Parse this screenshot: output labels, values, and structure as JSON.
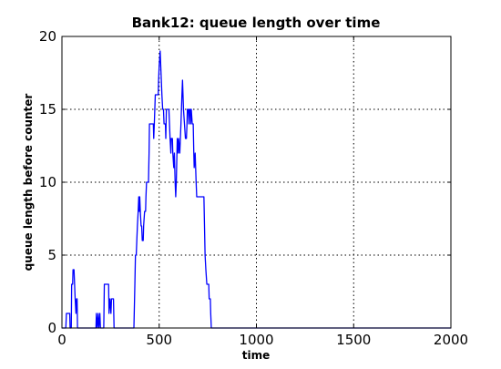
{
  "chart_data": {
    "type": "line",
    "title": "Bank12: queue length over time",
    "xlabel": "time",
    "ylabel": "queue length before counter",
    "xlim": [
      0,
      2000
    ],
    "ylim": [
      0,
      20
    ],
    "x_ticks": [
      0,
      500,
      1000,
      1500,
      2000
    ],
    "y_ticks": [
      0,
      5,
      10,
      15,
      20
    ],
    "x_tick_labels": [
      "0",
      "500",
      "1000",
      "1500",
      "2000"
    ],
    "y_tick_labels": [
      "0",
      "5",
      "10",
      "15",
      "20"
    ],
    "grid": true,
    "colors": {
      "series": "#0000ff",
      "axes": "#000000",
      "background": "#ffffff"
    },
    "series": [
      {
        "points": [
          [
            0,
            0
          ],
          [
            20,
            0
          ],
          [
            23,
            1
          ],
          [
            40,
            1
          ],
          [
            42,
            0
          ],
          [
            48,
            0
          ],
          [
            50,
            3
          ],
          [
            55,
            3
          ],
          [
            57,
            4
          ],
          [
            62,
            4
          ],
          [
            65,
            3
          ],
          [
            68,
            2
          ],
          [
            72,
            1
          ],
          [
            75,
            2
          ],
          [
            78,
            2
          ],
          [
            80,
            0
          ],
          [
            90,
            0
          ],
          [
            175,
            0
          ],
          [
            177,
            1
          ],
          [
            182,
            0
          ],
          [
            186,
            1
          ],
          [
            190,
            0
          ],
          [
            195,
            1
          ],
          [
            198,
            0
          ],
          [
            215,
            0
          ],
          [
            218,
            3
          ],
          [
            240,
            3
          ],
          [
            242,
            1
          ],
          [
            247,
            2
          ],
          [
            252,
            1
          ],
          [
            255,
            2
          ],
          [
            265,
            2
          ],
          [
            268,
            0
          ],
          [
            370,
            0
          ],
          [
            375,
            3
          ],
          [
            378,
            5
          ],
          [
            382,
            5
          ],
          [
            385,
            6
          ],
          [
            388,
            7
          ],
          [
            392,
            8
          ],
          [
            395,
            9
          ],
          [
            398,
            8
          ],
          [
            400,
            9
          ],
          [
            403,
            8
          ],
          [
            407,
            7
          ],
          [
            410,
            7
          ],
          [
            413,
            6
          ],
          [
            418,
            6
          ],
          [
            420,
            7
          ],
          [
            425,
            8
          ],
          [
            430,
            8
          ],
          [
            432,
            9
          ],
          [
            435,
            10
          ],
          [
            445,
            10
          ],
          [
            448,
            12
          ],
          [
            450,
            14
          ],
          [
            470,
            14
          ],
          [
            472,
            13
          ],
          [
            475,
            14
          ],
          [
            480,
            16
          ],
          [
            495,
            16
          ],
          [
            497,
            17
          ],
          [
            500,
            18
          ],
          [
            505,
            19
          ],
          [
            508,
            18
          ],
          [
            511,
            17
          ],
          [
            514,
            16
          ],
          [
            518,
            15
          ],
          [
            522,
            15
          ],
          [
            525,
            14
          ],
          [
            532,
            14
          ],
          [
            534,
            13
          ],
          [
            537,
            15
          ],
          [
            550,
            15
          ],
          [
            553,
            14
          ],
          [
            556,
            13
          ],
          [
            560,
            12
          ],
          [
            562,
            13
          ],
          [
            568,
            13
          ],
          [
            570,
            12
          ],
          [
            575,
            11
          ],
          [
            578,
            12
          ],
          [
            580,
            11
          ],
          [
            582,
            10
          ],
          [
            585,
            9
          ],
          [
            588,
            10
          ],
          [
            593,
            13
          ],
          [
            598,
            12
          ],
          [
            600,
            13
          ],
          [
            606,
            12
          ],
          [
            609,
            13
          ],
          [
            612,
            14
          ],
          [
            617,
            16
          ],
          [
            620,
            17
          ],
          [
            625,
            15
          ],
          [
            630,
            14
          ],
          [
            635,
            13
          ],
          [
            640,
            13
          ],
          [
            643,
            14
          ],
          [
            645,
            15
          ],
          [
            650,
            15
          ],
          [
            653,
            14
          ],
          [
            656,
            15
          ],
          [
            660,
            15
          ],
          [
            662,
            14
          ],
          [
            665,
            15
          ],
          [
            670,
            14
          ],
          [
            675,
            14
          ],
          [
            678,
            12
          ],
          [
            680,
            11
          ],
          [
            685,
            12
          ],
          [
            690,
            10
          ],
          [
            693,
            9
          ],
          [
            697,
            9
          ],
          [
            699,
            9
          ],
          [
            730,
            9
          ],
          [
            733,
            7
          ],
          [
            736,
            5
          ],
          [
            740,
            4
          ],
          [
            745,
            3
          ],
          [
            750,
            3
          ],
          [
            755,
            3
          ],
          [
            757,
            2
          ],
          [
            760,
            2
          ],
          [
            763,
            2
          ],
          [
            765,
            1
          ],
          [
            768,
            0
          ],
          [
            770,
            0
          ],
          [
            2000,
            0
          ]
        ]
      }
    ]
  }
}
